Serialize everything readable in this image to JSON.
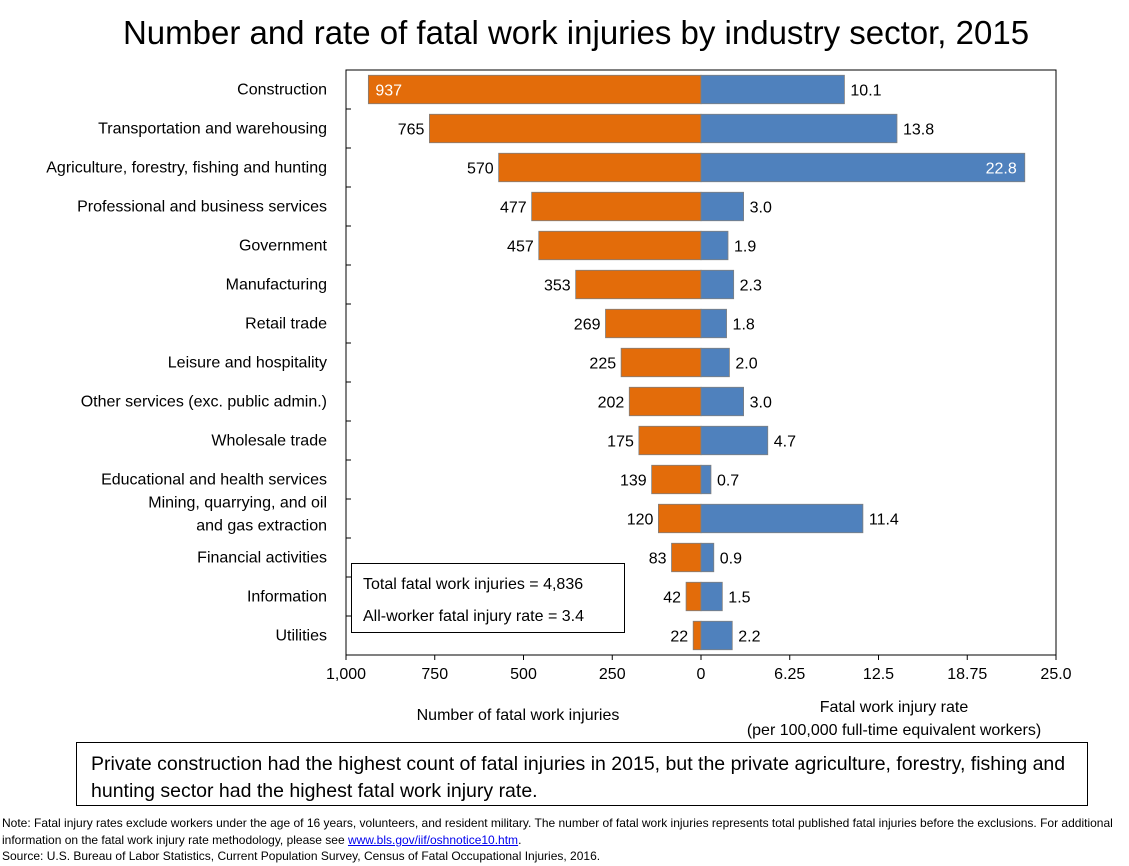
{
  "chart_data": {
    "type": "bar",
    "title": "Number and rate of fatal work injuries by industry sector, 2015",
    "categories": [
      [
        "Construction"
      ],
      [
        "Transportation and warehousing"
      ],
      [
        "Agriculture, forestry, fishing and hunting"
      ],
      [
        "Professional and business services"
      ],
      [
        "Government"
      ],
      [
        "Manufacturing"
      ],
      [
        "Retail trade"
      ],
      [
        "Leisure and hospitality"
      ],
      [
        "Other services (exc. public admin.)"
      ],
      [
        "Wholesale trade"
      ],
      [
        "Educational and health services"
      ],
      [
        "Mining, quarrying, and oil",
        "and gas extraction"
      ],
      [
        "Financial activities"
      ],
      [
        "Information"
      ],
      [
        "Utilities"
      ]
    ],
    "series": [
      {
        "name": "Number of fatal work injuries",
        "color": "#E36C0A",
        "values": [
          937,
          765,
          570,
          477,
          457,
          353,
          269,
          225,
          202,
          175,
          139,
          120,
          83,
          42,
          22
        ],
        "labels": [
          "937",
          "765",
          "570",
          "477",
          "457",
          "353",
          "269",
          "225",
          "202",
          "175",
          "139",
          "120",
          "83",
          "42",
          "22"
        ],
        "xlim": [
          0,
          1000
        ],
        "ticks": [
          "1,000",
          "750",
          "500",
          "250",
          "0"
        ],
        "xlabel": "Number of fatal work injuries"
      },
      {
        "name": "Fatal work injury rate",
        "color": "#4F81BD",
        "values": [
          10.1,
          13.8,
          22.8,
          3.0,
          1.9,
          2.3,
          1.8,
          2.0,
          3.0,
          4.7,
          0.7,
          11.4,
          0.9,
          1.5,
          2.2
        ],
        "labels": [
          "10.1",
          "13.8",
          "22.8",
          "3.0",
          "1.9",
          "2.3",
          "1.8",
          "2.0",
          "3.0",
          "4.7",
          "0.7",
          "11.4",
          "0.9",
          "1.5",
          "2.2"
        ],
        "xlim": [
          0,
          25
        ],
        "ticks": [
          "6.25",
          "12.5",
          "18.75",
          "25.0"
        ],
        "xlabel": [
          "Fatal work injury rate",
          "(per 100,000 full-time equivalent workers)"
        ]
      }
    ]
  },
  "totals_box": {
    "total_label": "Total fatal work injuries = 4,836",
    "rate_label": "All-worker fatal injury rate = 3.4"
  },
  "callout": "Private construction had the highest count of fatal injuries in 2015, but the private agriculture, forestry, fishing and hunting sector had the highest fatal work injury rate.",
  "note": {
    "prefix": "Note: Fatal injury rates exclude workers under the age of 16 years, volunteers, and resident military. The number of fatal work injuries represents total published fatal injuries before the exclusions. For additional information on the fatal work injury rate methodology, please see ",
    "link_text": "www.bls.gov/iif/oshnotice10.htm",
    "suffix": "."
  },
  "source": "Source:  U.S. Bureau of Labor Statistics, Current Population Survey, Census of Fatal Occupational Injuries, 2016."
}
